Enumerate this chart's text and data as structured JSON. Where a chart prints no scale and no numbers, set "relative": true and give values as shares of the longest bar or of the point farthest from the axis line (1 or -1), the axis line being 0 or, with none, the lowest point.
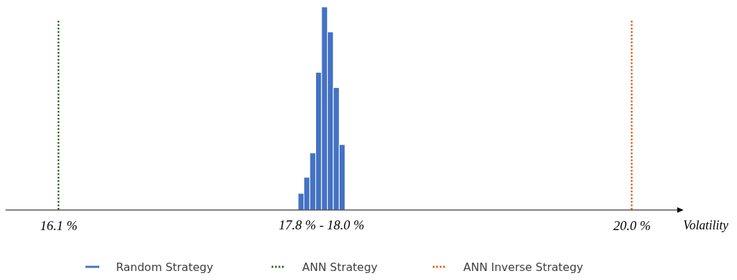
{
  "chart_data": {
    "type": "bar",
    "xlabel": "Volatility",
    "relative": true,
    "x": [
      17.75,
      17.79,
      17.83,
      17.87,
      17.91,
      17.95,
      17.99,
      18.03
    ],
    "series": [
      {
        "name": "Random Strategy",
        "color": "#4472c4",
        "values": [
          0.082,
          0.161,
          0.281,
          0.678,
          1,
          0.877,
          0.603,
          0.322
        ]
      }
    ],
    "xlim": [
      15.74,
      20.31
    ],
    "xticks": [
      {
        "value": 16.1,
        "label": "16.1 %"
      },
      {
        "value": 20.0,
        "label": "20.0 %"
      }
    ],
    "annotations": [
      "17.8 % - 18.0 %"
    ],
    "ref_lines": [
      {
        "axis": "x",
        "value": 16.1,
        "label": "ANN Strategy",
        "color": "#2e6b1f",
        "line_style": "dotted"
      },
      {
        "axis": "x",
        "value": 20.0,
        "label": "ANN Inverse Strategy",
        "color": "#e0601c",
        "line_style": "dotted"
      }
    ],
    "grid": false,
    "legend": "bottom"
  }
}
